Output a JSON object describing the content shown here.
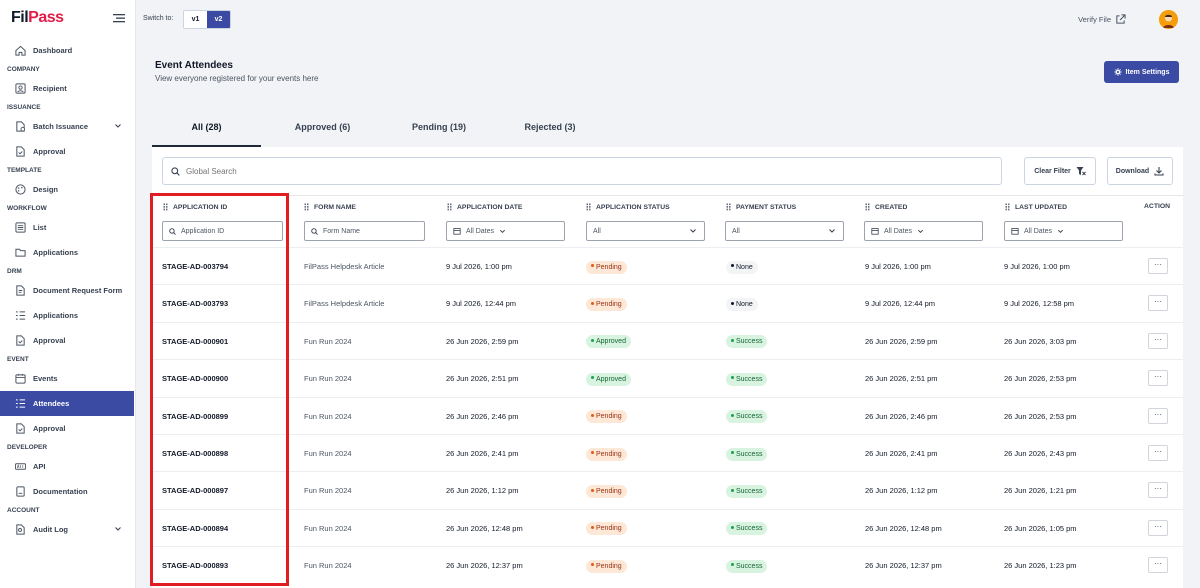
{
  "app": {
    "logo_main": "FilPass",
    "logo_prefix": "Fil",
    "logo_suffix": "Pass"
  },
  "sidebar": {
    "dashboard": "Dashboard",
    "sections": {
      "company": "COMPANY",
      "issuance": "ISSUANCE",
      "template": "TEMPLATE",
      "workflow": "WORKFLOW",
      "drm": "DRM",
      "event": "EVENT",
      "developer": "DEVELOPER",
      "account": "ACCOUNT"
    },
    "items": {
      "recipient": "Recipient",
      "batch_issuance": "Batch Issuance",
      "issuance_approval": "Approval",
      "design": "Design",
      "list": "List",
      "workflow_applications": "Applications",
      "document_request_form": "Document Request Form",
      "drm_applications": "Applications",
      "drm_approval": "Approval",
      "events": "Events",
      "attendees": "Attendees",
      "event_approval": "Approval",
      "api": "API",
      "documentation": "Documentation",
      "audit_log": "Audit Log"
    }
  },
  "topbar": {
    "switch_label": "Switch to:",
    "v1": "v1",
    "v2": "v2",
    "verify_file": "Verify File"
  },
  "header": {
    "title": "Event Attendees",
    "subtitle": "View everyone registered for your events here",
    "item_settings": "Item Settings"
  },
  "tabs": [
    {
      "label": "All (28)"
    },
    {
      "label": "Approved (6)"
    },
    {
      "label": "Pending (19)"
    },
    {
      "label": "Rejected (3)"
    }
  ],
  "toolbar": {
    "search_placeholder": "Global Search",
    "clear_filter": "Clear Filter",
    "download": "Download"
  },
  "columns": {
    "application_id": "APPLICATION ID",
    "form_name": "FORM NAME",
    "application_date": "APPLICATION DATE",
    "application_status": "APPLICATION STATUS",
    "payment_status": "PAYMENT STATUS",
    "created": "CREATED",
    "last_updated": "LAST UPDATED",
    "action": "ACTION"
  },
  "filters": {
    "application_id_placeholder": "Application ID",
    "form_name_placeholder": "Form Name",
    "all_dates": "All Dates",
    "all": "All"
  },
  "rows": [
    {
      "id": "STAGE-AD-003794",
      "form": "FilPass Helpdesk Article",
      "app_date": "9 Jul 2026, 1:00 pm",
      "app_status": "Pending",
      "pay_status": "None",
      "created": "9 Jul 2026, 1:00 pm",
      "updated": "9 Jul 2026, 1:00 pm",
      "action": "···"
    },
    {
      "id": "STAGE-AD-003793",
      "form": "FilPass Helpdesk Article",
      "app_date": "9 Jul 2026, 12:44 pm",
      "app_status": "Pending",
      "pay_status": "None",
      "created": "9 Jul 2026, 12:44 pm",
      "updated": "9 Jul 2026, 12:58 pm",
      "action": "···"
    },
    {
      "id": "STAGE-AD-000901",
      "form": "Fun Run 2024",
      "app_date": "26 Jun 2026, 2:59 pm",
      "app_status": "Approved",
      "pay_status": "Success",
      "created": "26 Jun 2026, 2:59 pm",
      "updated": "26 Jun 2026, 3:03 pm",
      "action": "···"
    },
    {
      "id": "STAGE-AD-000900",
      "form": "Fun Run 2024",
      "app_date": "26 Jun 2026, 2:51 pm",
      "app_status": "Approved",
      "pay_status": "Success",
      "created": "26 Jun 2026, 2:51 pm",
      "updated": "26 Jun 2026, 2:53 pm",
      "action": "···"
    },
    {
      "id": "STAGE-AD-000899",
      "form": "Fun Run 2024",
      "app_date": "26 Jun 2026, 2:46 pm",
      "app_status": "Pending",
      "pay_status": "Success",
      "created": "26 Jun 2026, 2:46 pm",
      "updated": "26 Jun 2026, 2:53 pm",
      "action": "···"
    },
    {
      "id": "STAGE-AD-000898",
      "form": "Fun Run 2024",
      "app_date": "26 Jun 2026, 2:41 pm",
      "app_status": "Pending",
      "pay_status": "Success",
      "created": "26 Jun 2026, 2:41 pm",
      "updated": "26 Jun 2026, 2:43 pm",
      "action": "···"
    },
    {
      "id": "STAGE-AD-000897",
      "form": "Fun Run 2024",
      "app_date": "26 Jun 2026, 1:12 pm",
      "app_status": "Pending",
      "pay_status": "Success",
      "created": "26 Jun 2026, 1:12 pm",
      "updated": "26 Jun 2026, 1:21 pm",
      "action": "···"
    },
    {
      "id": "STAGE-AD-000894",
      "form": "Fun Run 2024",
      "app_date": "26 Jun 2026, 12:48 pm",
      "app_status": "Pending",
      "pay_status": "Success",
      "created": "26 Jun 2026, 12:48 pm",
      "updated": "26 Jun 2026, 1:05 pm",
      "action": "···"
    },
    {
      "id": "STAGE-AD-000893",
      "form": "Fun Run 2024",
      "app_date": "26 Jun 2026, 12:37 pm",
      "app_status": "Pending",
      "pay_status": "Success",
      "created": "26 Jun 2026, 12:37 pm",
      "updated": "26 Jun 2026, 1:23 pm",
      "action": "···"
    }
  ],
  "colors": {
    "primary": "#3b4aa3",
    "highlight": "#e11d24",
    "pending_bg": "#fde7d6",
    "success_bg": "#d8f3e0"
  }
}
